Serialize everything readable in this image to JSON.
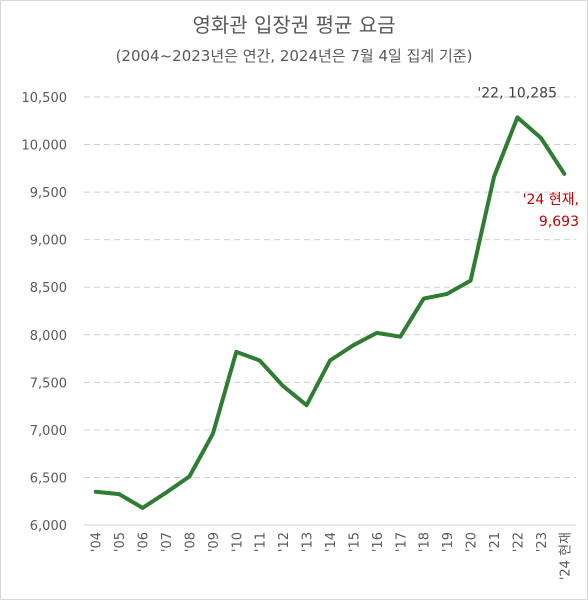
{
  "chart_data": {
    "type": "line",
    "title": "영화관 입장권 평균 요금",
    "subtitle": "(2004~2023년은 연간, 2024년은 7월 4일 집계 기준)",
    "categories": [
      "'04",
      "'05",
      "'06",
      "'07",
      "'08",
      "'09",
      "'10",
      "'11",
      "'12",
      "'13",
      "'14",
      "'15",
      "'16",
      "'17",
      "'18",
      "'19",
      "'20",
      "'21",
      "'22",
      "'23",
      "'24 현재"
    ],
    "series": [
      {
        "values": [
          6350,
          6325,
          6180,
          6340,
          6510,
          6960,
          7820,
          7730,
          7460,
          7260,
          7730,
          7890,
          8020,
          7980,
          8380,
          8430,
          8570,
          9660,
          10285,
          10070,
          9693
        ]
      }
    ],
    "ylim": [
      6000,
      10500
    ],
    "yticks": [
      6000,
      6500,
      7000,
      7500,
      8000,
      8500,
      9000,
      9500,
      10000,
      10500
    ],
    "ytick_labels": [
      "6,000",
      "6,500",
      "7,000",
      "7,500",
      "8,000",
      "8,500",
      "9,000",
      "9,500",
      "10,000",
      "10,500"
    ],
    "grid": true,
    "line_color": "#2e7d32",
    "annotations": [
      {
        "text": "'22,  10,285",
        "color": "#404040"
      },
      {
        "text_line1": "'24 현재,",
        "text_line2": "9,693",
        "color": "#c00000"
      }
    ]
  }
}
